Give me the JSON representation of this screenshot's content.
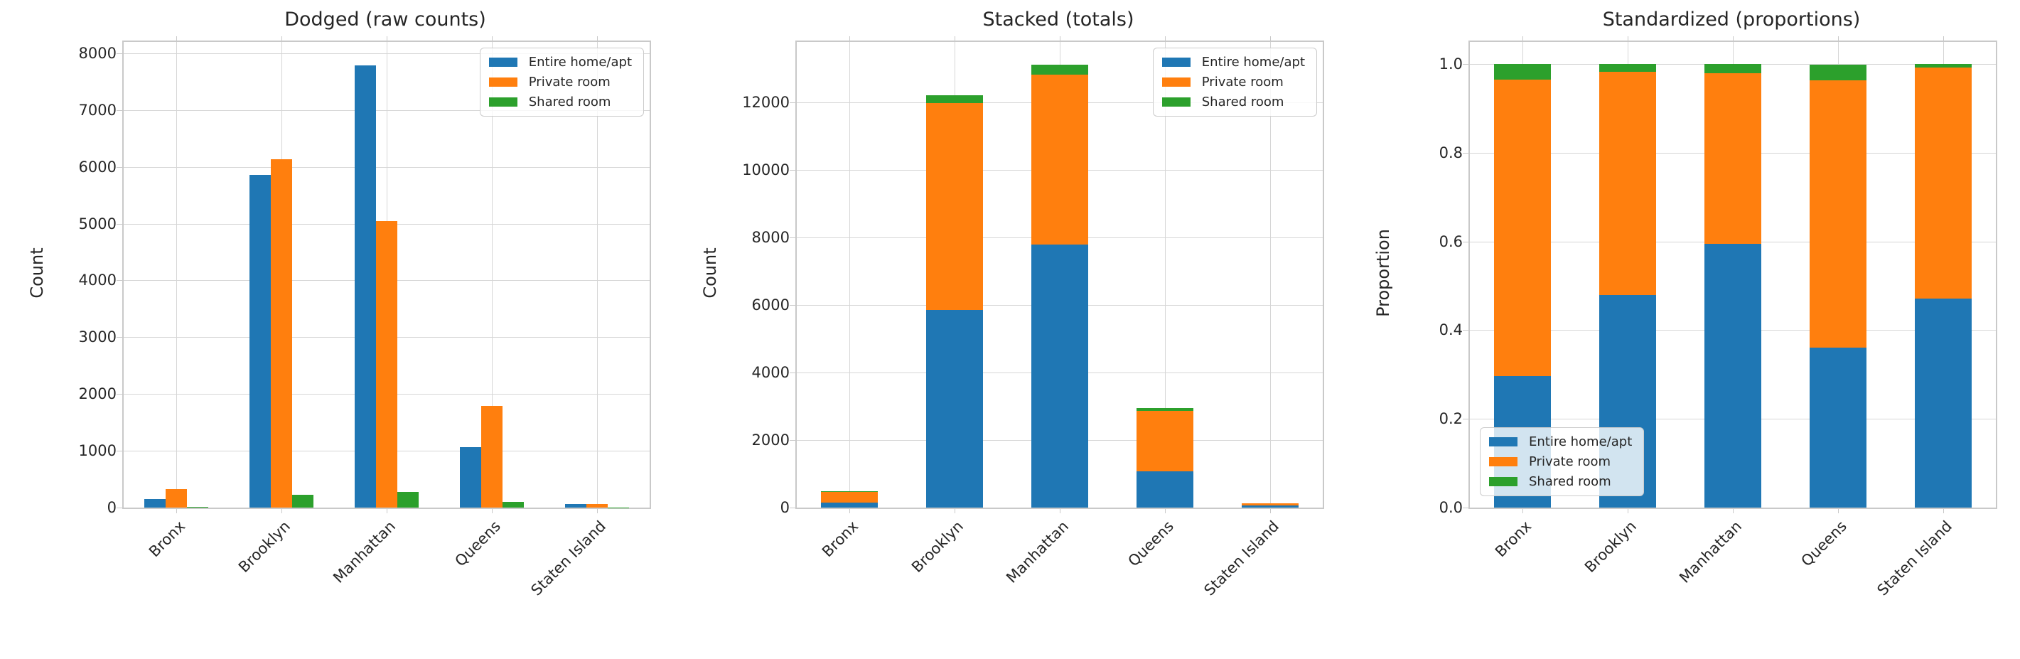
{
  "figure": {
    "background": "#ffffff",
    "text_color": "#262626",
    "grid_color": "#d6d6d6",
    "spine_color": "#c9c9c9"
  },
  "legend": {
    "entries": [
      "Entire home/apt",
      "Private room",
      "Shared room"
    ],
    "colors": [
      "#1f77b4",
      "#ff7f0e",
      "#2ca02c"
    ]
  },
  "chart_data": {
    "type": "bar",
    "categories": [
      "Bronx",
      "Brooklyn",
      "Manhattan",
      "Queens",
      "Staten Island"
    ],
    "series_names": [
      "Entire home/apt",
      "Private room",
      "Shared room"
    ],
    "series_colors": [
      "#1f77b4",
      "#ff7f0e",
      "#2ca02c"
    ],
    "grid": true,
    "charts": [
      {
        "title": "Dodged (raw counts)",
        "variant": "grouped",
        "ylabel": "Count",
        "ylim": [
          0,
          8200
        ],
        "ytick_values": [
          0,
          1000,
          2000,
          3000,
          4000,
          5000,
          6000,
          7000,
          8000
        ],
        "ytick_labels": [
          "0",
          "1000",
          "2000",
          "3000",
          "4000",
          "5000",
          "6000",
          "7000",
          "8000"
        ],
        "legend_position": "top-right",
        "series": [
          {
            "name": "Entire home/apt",
            "values": [
              145,
              5860,
              7790,
              1070,
              57
            ]
          },
          {
            "name": "Private room",
            "values": [
              328,
              6135,
              5050,
              1785,
              63
            ]
          },
          {
            "name": "Shared room",
            "values": [
              17,
              220,
              280,
              105,
              1
            ]
          }
        ]
      },
      {
        "title": "Stacked (totals)",
        "variant": "stacked",
        "ylabel": "Count",
        "ylim": [
          0,
          13800
        ],
        "ytick_values": [
          0,
          2000,
          4000,
          6000,
          8000,
          10000,
          12000
        ],
        "ytick_labels": [
          "0",
          "2000",
          "4000",
          "6000",
          "8000",
          "10000",
          "12000"
        ],
        "legend_position": "top-right",
        "series": [
          {
            "name": "Entire home/apt",
            "values": [
              145,
              5860,
              7790,
              1070,
              57
            ]
          },
          {
            "name": "Private room",
            "values": [
              328,
              6135,
              5050,
              1785,
              63
            ]
          },
          {
            "name": "Shared room",
            "values": [
              17,
              220,
              280,
              105,
              1
            ]
          }
        ],
        "totals": [
          490,
          12215,
          13120,
          2960,
          121
        ]
      },
      {
        "title": "Standardized (proportions)",
        "variant": "stacked",
        "ylabel": "Proportion",
        "ylim": [
          0,
          1.05
        ],
        "ytick_values": [
          0.0,
          0.2,
          0.4,
          0.6,
          0.8,
          1.0
        ],
        "ytick_labels": [
          "0.0",
          "0.2",
          "0.4",
          "0.6",
          "0.8",
          "1.0"
        ],
        "legend_position": "bottom-left",
        "series": [
          {
            "name": "Entire home/apt",
            "values": [
              0.296,
              0.48,
              0.594,
              0.361,
              0.471
            ]
          },
          {
            "name": "Private room",
            "values": [
              0.669,
              0.502,
              0.385,
              0.603,
              0.521
            ]
          },
          {
            "name": "Shared room",
            "values": [
              0.035,
              0.018,
              0.021,
              0.035,
              0.008
            ]
          }
        ]
      }
    ]
  }
}
